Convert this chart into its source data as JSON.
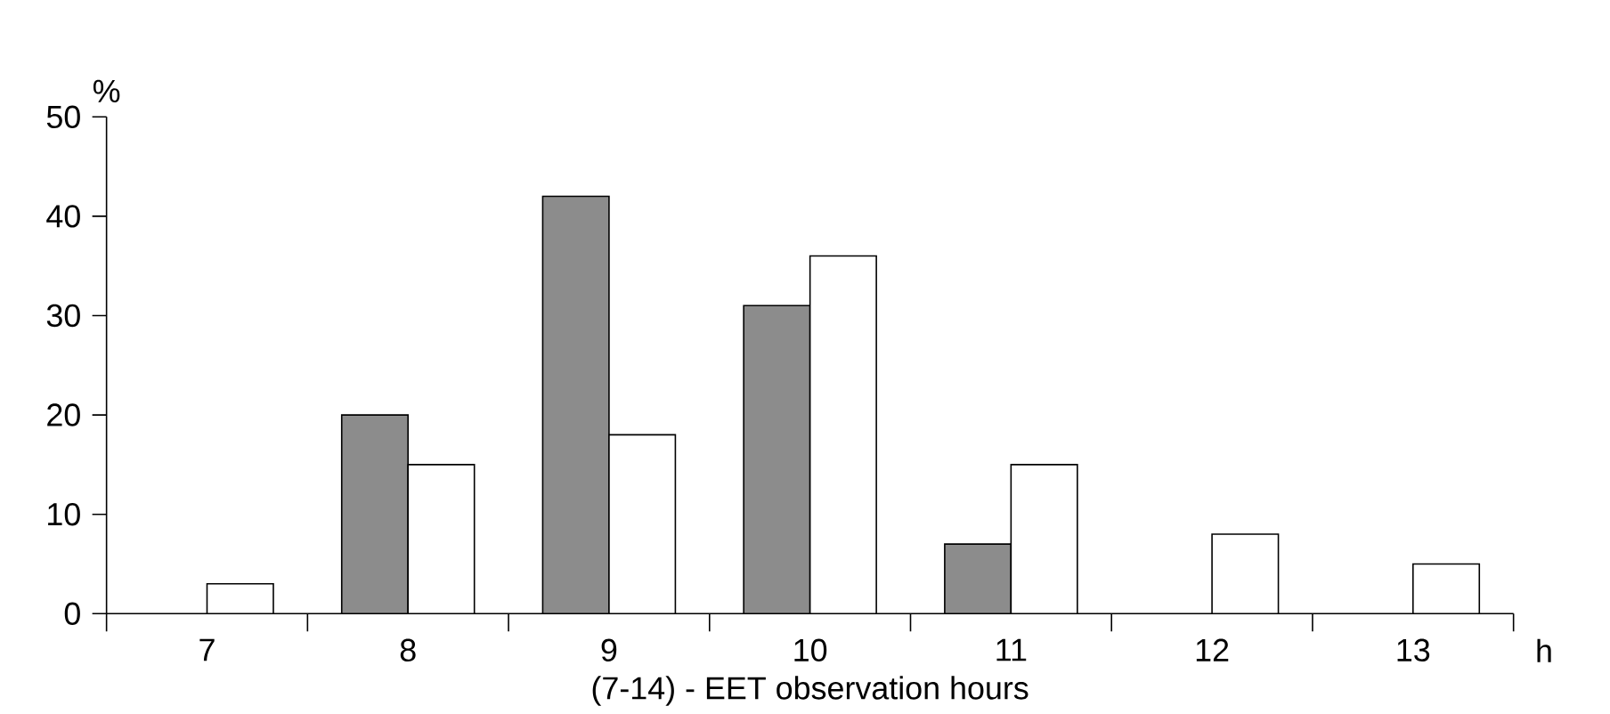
{
  "chart_data": {
    "type": "bar",
    "xlabel": "(7-14) - EET observation hours",
    "ylabel": "%",
    "annotations": [
      "h"
    ],
    "categories": [
      "7",
      "8",
      "9",
      "10",
      "11",
      "12",
      "13"
    ],
    "series": [
      {
        "color": "#8c8c8c",
        "values": [
          null,
          20,
          42,
          31,
          7,
          null,
          null
        ]
      },
      {
        "color": "#ffffff",
        "values": [
          3,
          15,
          18,
          36,
          15,
          8,
          5
        ]
      }
    ],
    "ylim": [
      0,
      50
    ],
    "yticks": [
      0,
      10,
      20,
      30,
      40,
      50
    ]
  }
}
